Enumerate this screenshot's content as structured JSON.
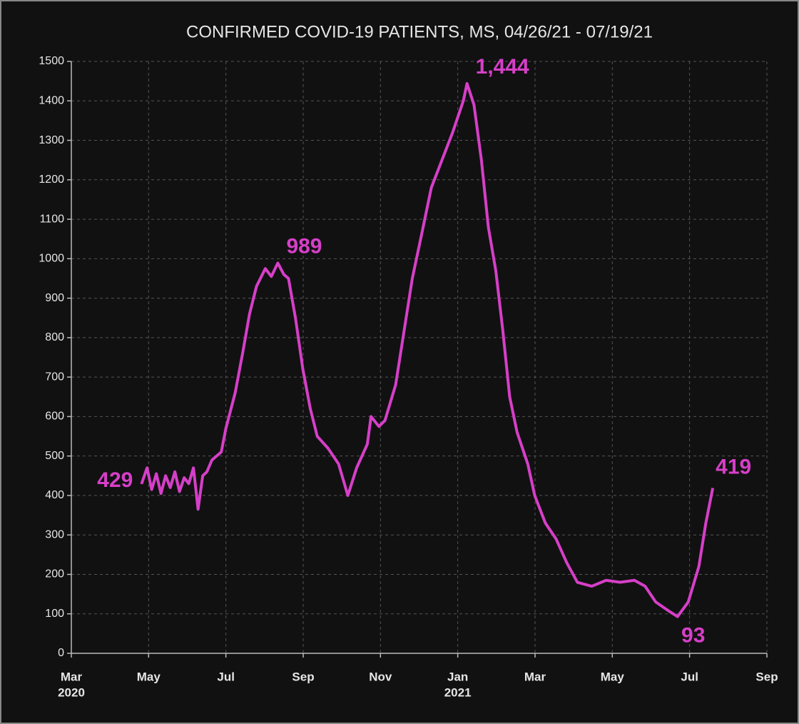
{
  "chart_data": {
    "type": "line",
    "title": "CONFIRMED COVID-19 PATIENTS, MS, 04/26/21 - 07/19/21",
    "x": [
      2020.318,
      2020.33,
      2020.34,
      2020.35,
      2020.36,
      2020.37,
      2020.38,
      2020.39,
      2020.4,
      2020.41,
      2020.42,
      2020.43,
      2020.44,
      2020.45,
      2020.459,
      2020.47,
      2020.49,
      2020.5,
      2020.52,
      2020.536,
      2020.551,
      2020.566,
      2020.585,
      2020.598,
      2020.612,
      2020.625,
      2020.635,
      2020.65,
      2020.666,
      2020.682,
      2020.697,
      2020.72,
      2020.743,
      2020.763,
      2020.782,
      2020.805,
      2020.813,
      2020.83,
      2020.843,
      2020.866,
      2020.882,
      2020.902,
      2020.92,
      2020.943,
      2020.966,
      2020.989,
      2021.012,
      2021.02,
      2021.035,
      2021.051,
      2021.066,
      2021.082,
      2021.097,
      2021.112,
      2021.128,
      2021.151,
      2021.166,
      2021.189,
      2021.212,
      2021.235,
      2021.258,
      2021.289,
      2021.32,
      2021.35,
      2021.381,
      2021.404,
      2021.427,
      2021.458,
      2021.474,
      2021.497,
      2021.52,
      2021.535,
      2021.55
    ],
    "series": [
      {
        "name": "Confirmed COVID-19 patients",
        "color": "#d63fc8",
        "values": [
          429,
          470,
          415,
          455,
          405,
          450,
          420,
          460,
          410,
          445,
          430,
          470,
          365,
          450,
          460,
          490,
          510,
          570,
          660,
          760,
          860,
          930,
          975,
          955,
          989,
          960,
          950,
          850,
          720,
          620,
          550,
          520,
          480,
          400,
          470,
          530,
          600,
          575,
          590,
          680,
          800,
          950,
          1050,
          1180,
          1250,
          1320,
          1400,
          1444,
          1390,
          1250,
          1080,
          970,
          820,
          650,
          560,
          480,
          400,
          330,
          290,
          230,
          180,
          170,
          185,
          180,
          185,
          170,
          130,
          105,
          93,
          130,
          220,
          330,
          419
        ],
        "value_labels": [
          "429",
          null,
          null,
          null,
          null,
          null,
          null,
          null,
          null,
          null,
          null,
          null,
          null,
          null,
          null,
          null,
          null,
          null,
          null,
          null,
          null,
          null,
          null,
          null,
          "989",
          null,
          null,
          null,
          null,
          null,
          null,
          null,
          null,
          null,
          null,
          null,
          null,
          null,
          null,
          null,
          null,
          null,
          null,
          null,
          null,
          null,
          null,
          "1,444",
          null,
          null,
          null,
          null,
          null,
          null,
          null,
          null,
          null,
          null,
          null,
          null,
          null,
          null,
          null,
          null,
          null,
          null,
          null,
          null,
          "93",
          null,
          null,
          null,
          "419"
        ]
      }
    ],
    "xlim": [
      2020.1667,
      2021.6667
    ],
    "xticks": [
      {
        "value": 2020.1667,
        "label": "Mar"
      },
      {
        "value": 2020.3333,
        "label": "May"
      },
      {
        "value": 2020.5,
        "label": "Jul"
      },
      {
        "value": 2020.6667,
        "label": "Sep"
      },
      {
        "value": 2020.8333,
        "label": "Nov"
      },
      {
        "value": 2021.0,
        "label": "Jan"
      },
      {
        "value": 2021.1667,
        "label": "Mar"
      },
      {
        "value": 2021.3333,
        "label": "May"
      },
      {
        "value": 2021.5,
        "label": "Jul"
      },
      {
        "value": 2021.6667,
        "label": "Sep"
      }
    ],
    "xtick_years": [
      {
        "value": 2020.1667,
        "label": "2020"
      },
      {
        "value": 2021.0,
        "label": "2021"
      }
    ],
    "ylim": [
      0,
      1500
    ],
    "yticks": [
      0,
      100,
      200,
      300,
      400,
      500,
      600,
      700,
      800,
      900,
      1000,
      1100,
      1200,
      1300,
      1400,
      1500
    ],
    "grid": true
  }
}
